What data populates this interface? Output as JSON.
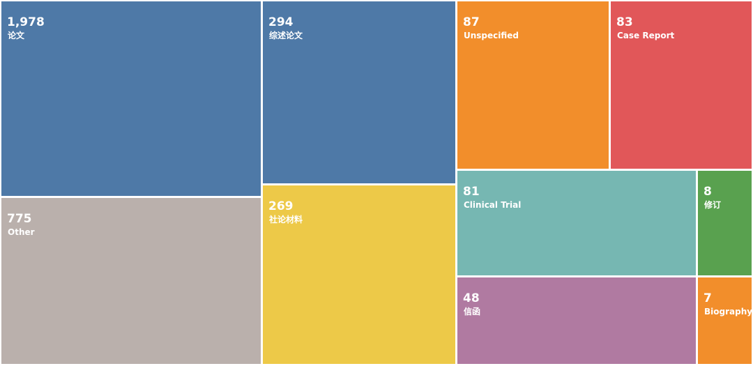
{
  "chart_data": {
    "type": "treemap",
    "items": [
      {
        "value": 1978,
        "value_text": "1,978",
        "label": "论文",
        "color": "#4e79a7"
      },
      {
        "value": 775,
        "value_text": "775",
        "label": "Other",
        "color": "#bab0ac"
      },
      {
        "value": 294,
        "value_text": "294",
        "label": "综述论文",
        "color": "#4e79a7"
      },
      {
        "value": 269,
        "value_text": "269",
        "label": "社论材料",
        "color": "#edc948"
      },
      {
        "value": 87,
        "value_text": "87",
        "label": "Unspecified",
        "color": "#f28e2b"
      },
      {
        "value": 83,
        "value_text": "83",
        "label": "Case Report",
        "color": "#e15759"
      },
      {
        "value": 81,
        "value_text": "81",
        "label": "Clinical Trial",
        "color": "#76b7b2"
      },
      {
        "value": 8,
        "value_text": "8",
        "label": "修订",
        "color": "#59a14f"
      },
      {
        "value": 48,
        "value_text": "48",
        "label": "信函",
        "color": "#b07aa1"
      },
      {
        "value": 7,
        "value_text": "7",
        "label": "Biography",
        "color": "#f28e2b"
      }
    ]
  }
}
